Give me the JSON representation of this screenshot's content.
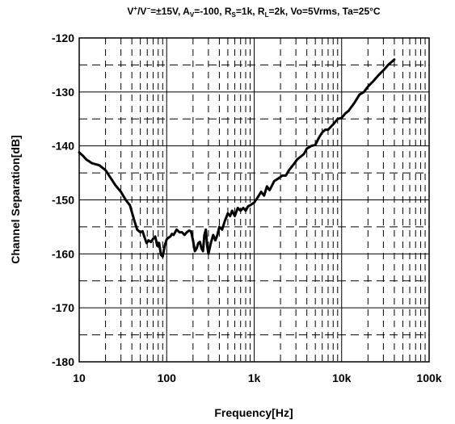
{
  "chart_data": {
    "type": "line",
    "title_parts": {
      "v": "V",
      "plus": "+",
      "slash": "/V",
      "minus": "−",
      "part1": "=±15V, A",
      "sub_v": "V",
      "part2": "=-100, R",
      "sub_s": "S",
      "part3": "=1k, R",
      "sub_l": "L",
      "part4": "=2k, Vo=5Vrms, Ta=25°C"
    },
    "xlabel": "Frequency[Hz]",
    "ylabel": "Channel Separation[dB]",
    "x_scale": "log",
    "xlim": [
      10,
      100000
    ],
    "ylim": [
      -180,
      -120
    ],
    "xticks": [
      10,
      100,
      1000,
      10000,
      100000
    ],
    "xtick_labels": [
      "10",
      "100",
      "1k",
      "10k",
      "100k"
    ],
    "yticks": [
      -120,
      -130,
      -140,
      -150,
      -160,
      -170,
      -180
    ],
    "ytick_labels": [
      "-120",
      "-130",
      "-140",
      "-150",
      "-160",
      "-170",
      "-180"
    ],
    "grid": true,
    "line_color": "#000000",
    "series": [
      {
        "x": [
          10,
          11,
          12,
          14,
          17,
          20,
          23,
          26,
          30,
          34,
          38,
          42,
          46,
          50,
          53,
          56,
          59,
          62,
          66,
          70,
          74,
          78,
          82,
          86,
          90,
          95,
          100,
          105,
          110,
          115,
          120,
          130,
          140,
          150,
          160,
          170,
          180,
          190,
          200,
          210,
          220,
          230,
          240,
          250,
          260,
          270,
          280,
          290,
          300,
          320,
          340,
          360,
          380,
          400,
          430,
          460,
          500,
          530,
          560,
          600,
          650,
          700,
          750,
          800,
          850,
          900,
          1000,
          1100,
          1200,
          1300,
          1400,
          1500,
          1700,
          1900,
          2100,
          2300,
          2500,
          2800,
          3100,
          3400,
          3700,
          4000,
          4500,
          5000,
          5500,
          6000,
          6500,
          7000,
          8000,
          9000,
          10000,
          11000,
          12000,
          14000,
          16000,
          18000,
          20000,
          23000,
          26000,
          30000,
          34000,
          40000
        ],
        "y": [
          -141.2,
          -141.8,
          -142.5,
          -143.2,
          -143.6,
          -144.5,
          -146.0,
          -147.3,
          -148.5,
          -150.0,
          -151.0,
          -153.5,
          -155.5,
          -156.0,
          -155.8,
          -157.0,
          -158.0,
          -157.5,
          -157.8,
          -157.2,
          -156.8,
          -158.5,
          -158.0,
          -160.2,
          -160.5,
          -158.5,
          -157.3,
          -157.0,
          -156.8,
          -156.3,
          -156.5,
          -155.5,
          -156.0,
          -156.0,
          -156.5,
          -156.0,
          -155.7,
          -155.8,
          -157.5,
          -159.5,
          -159.0,
          -158.0,
          -157.8,
          -159.0,
          -159.5,
          -156.5,
          -155.5,
          -158.5,
          -160.0,
          -158.0,
          -156.5,
          -157.5,
          -156.5,
          -155.0,
          -155.5,
          -154.0,
          -152.5,
          -153.0,
          -152.0,
          -153.0,
          -151.5,
          -152.0,
          -151.5,
          -152.0,
          -151.2,
          -151.0,
          -150.5,
          -149.5,
          -148.5,
          -149.2,
          -147.5,
          -148.2,
          -146.5,
          -146.0,
          -145.5,
          -145.5,
          -144.5,
          -143.5,
          -142.5,
          -142.0,
          -141.5,
          -140.5,
          -140.0,
          -139.8,
          -138.5,
          -137.5,
          -137.0,
          -137.0,
          -136.0,
          -135.0,
          -134.8,
          -134.0,
          -133.5,
          -132.0,
          -130.5,
          -130.0,
          -129.0,
          -128.0,
          -127.0,
          -126.0,
          -125.0,
          -124.0
        ]
      }
    ]
  }
}
